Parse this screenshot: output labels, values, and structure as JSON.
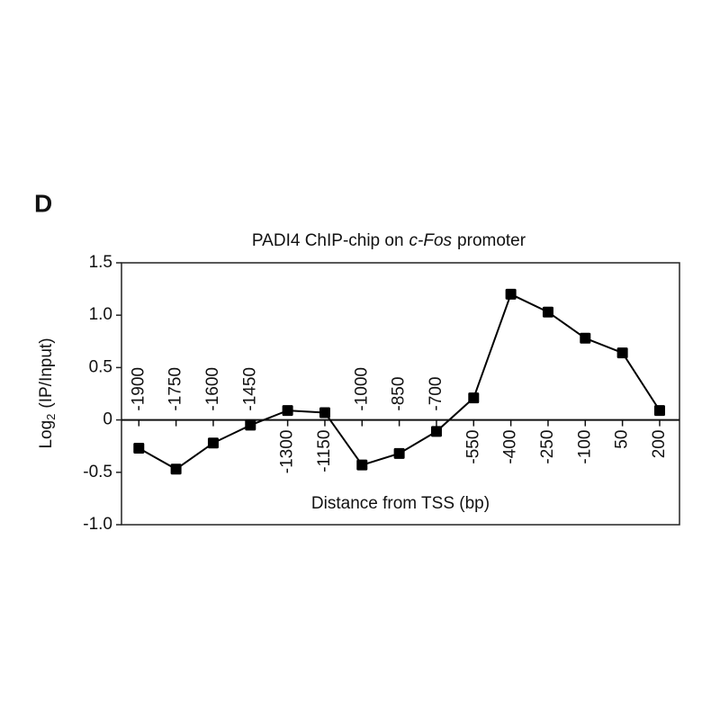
{
  "panel_label": "D",
  "chart_data": {
    "type": "line",
    "title": [
      {
        "text": "PADI4 ChIP-chip on"
      },
      {
        "text": "c-Fos",
        "italic": true
      },
      {
        "text": "promoter"
      }
    ],
    "xlabel": "Distance from TSS (bp)",
    "ylabel": {
      "base": "Log",
      "subscript": "2",
      "rest": "(IP/Input)"
    },
    "x": [
      -1900,
      -1750,
      -1600,
      -1450,
      -1300,
      -1150,
      -1000,
      -850,
      -700,
      -550,
      -400,
      -250,
      -100,
      50,
      200
    ],
    "series": [
      {
        "color": "#000000",
        "values": [
          -0.27,
          -0.47,
          -0.22,
          -0.05,
          0.09,
          0.07,
          -0.43,
          -0.32,
          -0.11,
          0.21,
          1.2,
          1.03,
          0.78,
          0.64,
          0.09
        ]
      }
    ],
    "xlim": [
      -1970,
      280
    ],
    "xticks": [
      -1900,
      -1750,
      -1600,
      -1450,
      -1300,
      -1150,
      -1000,
      -850,
      -700,
      -550,
      -400,
      -250,
      -100,
      50,
      200
    ],
    "ylim": [
      -1.0,
      1.5
    ],
    "yticks": [
      1.5,
      {
        "value": 1.0,
        "label": "1.0"
      },
      0.5,
      0,
      -0.5,
      {
        "value": -1.0,
        "label": "-1.0"
      }
    ]
  }
}
